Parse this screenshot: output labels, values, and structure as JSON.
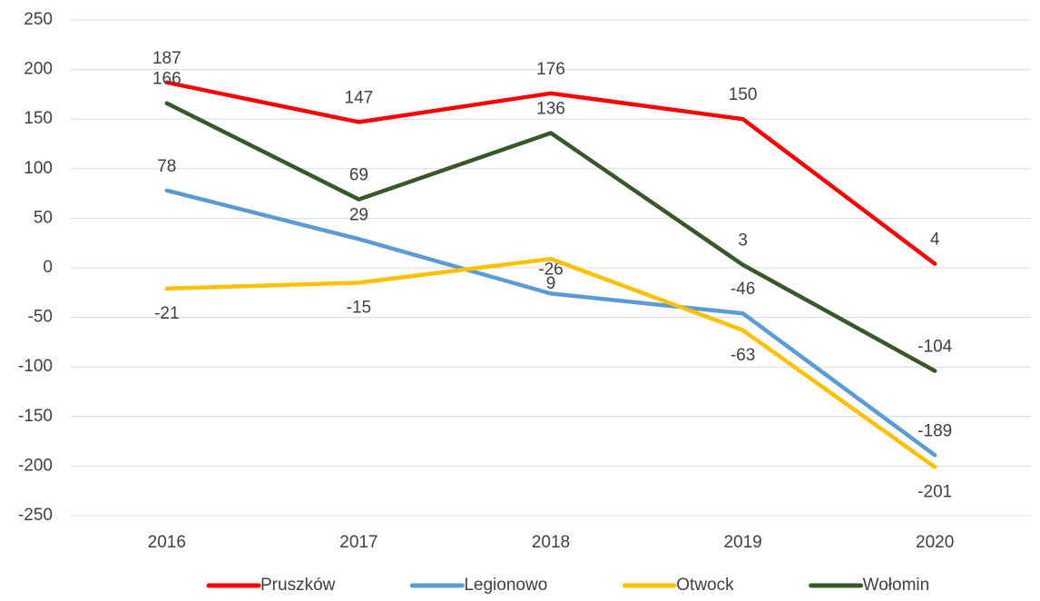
{
  "chart_data": {
    "type": "line",
    "categories": [
      "2016",
      "2017",
      "2018",
      "2019",
      "2020"
    ],
    "series": [
      {
        "name": "Pruszków",
        "color": "#ff0000",
        "values": [
          187,
          147,
          176,
          150,
          4
        ]
      },
      {
        "name": "Legionowo",
        "color": "#5b9bd5",
        "values": [
          78,
          29,
          -26,
          -46,
          -189
        ]
      },
      {
        "name": "Otwock",
        "color": "#ffc000",
        "values": [
          -21,
          -15,
          9,
          -63,
          -201
        ]
      },
      {
        "name": "Wołomin",
        "color": "#38572a",
        "values": [
          166,
          69,
          136,
          3,
          -104
        ]
      }
    ],
    "ylim": [
      -250,
      250
    ],
    "yticks": [
      -250,
      -200,
      -150,
      -100,
      -50,
      0,
      50,
      100,
      150,
      200,
      250
    ],
    "grid": true,
    "legend": "bottom"
  }
}
